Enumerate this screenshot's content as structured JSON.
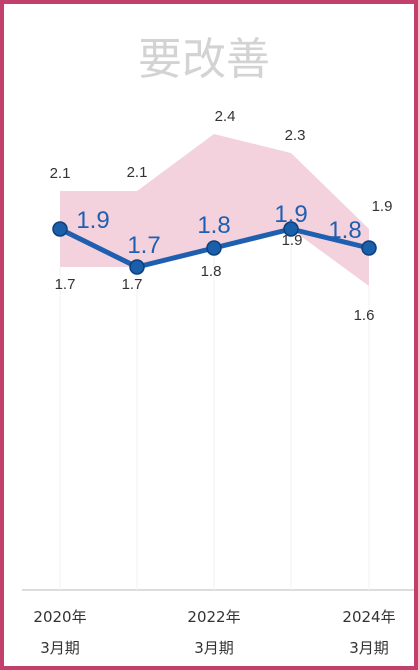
{
  "chart_data": {
    "type": "line",
    "title": "要改善",
    "categories": [
      [
        "2020年",
        "3月期"
      ],
      [
        "",
        ""
      ],
      [
        "2022年",
        "3月期"
      ],
      [
        "",
        ""
      ],
      [
        "2024年",
        "3月期"
      ]
    ],
    "series": [
      {
        "values": [
          1.9,
          1.7,
          1.8,
          1.9,
          1.8
        ]
      }
    ],
    "band": {
      "upper": [
        2.1,
        2.1,
        2.4,
        2.3,
        1.9
      ],
      "lower": [
        1.7,
        1.7,
        1.8,
        1.9,
        1.6
      ]
    },
    "ylim": [
      0,
      2.5
    ],
    "legend": "none",
    "colors": {
      "line": "#1f5fb0",
      "marker": "#1a5faa",
      "band": "#f2cdd9",
      "border": "#c2406e",
      "title": "#d3d3d3"
    }
  }
}
